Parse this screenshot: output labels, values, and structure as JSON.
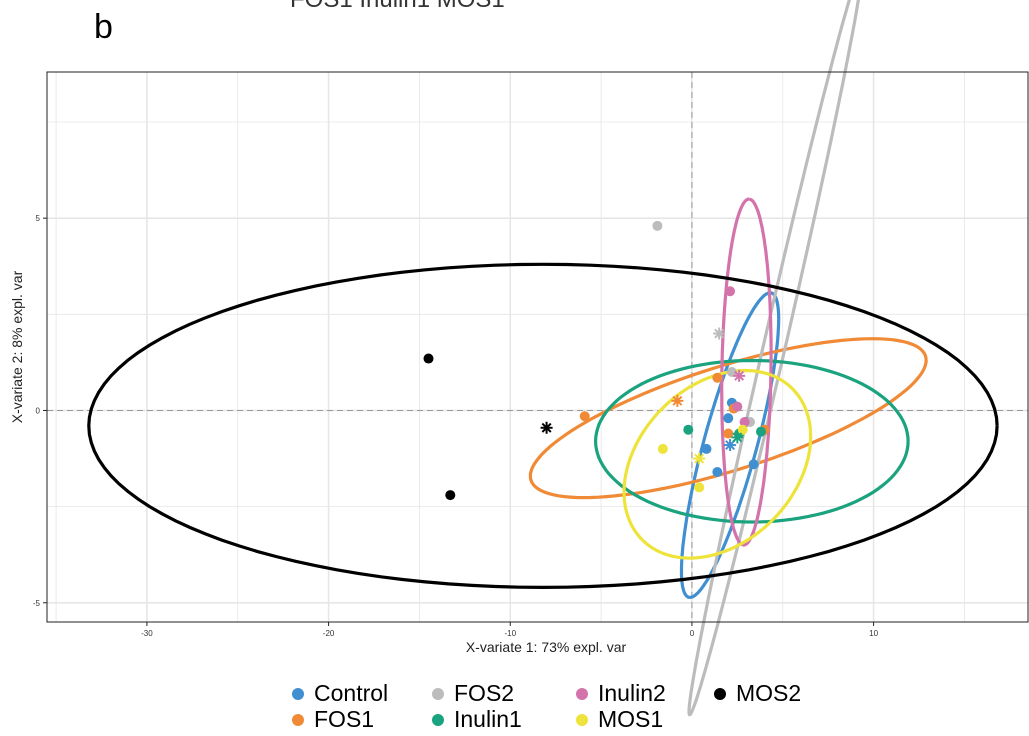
{
  "panel_label": "b",
  "top_cut_text": "FOS1 Inulin1 MOS1",
  "chart_data": {
    "type": "scatter",
    "title": "",
    "xlabel": "X-variate 1: 73% expl. var",
    "ylabel": "X-variate 2: 8% expl. var",
    "xlim": [
      -35.5,
      18.5
    ],
    "ylim": [
      -5.5,
      8.8
    ],
    "xticks": [
      -30,
      -20,
      -10,
      0,
      10
    ],
    "yticks": [
      -5,
      0,
      5
    ],
    "xtick_labels": [
      "-30",
      "-20",
      "-10",
      "0",
      "10"
    ],
    "ytick_labels": [
      "-5",
      "0",
      "5"
    ],
    "grid": true,
    "reference_lines": {
      "x": 0,
      "y": 0
    },
    "legend_position": "bottom",
    "series": [
      {
        "name": "Control",
        "color": "#3f8fd1",
        "points": [
          [
            0.8,
            -1.0
          ],
          [
            1.4,
            -1.6
          ],
          [
            3.4,
            -1.4
          ],
          [
            2.0,
            -0.2
          ],
          [
            3.0,
            -0.3
          ],
          [
            2.2,
            0.2
          ]
        ],
        "centroid": [
          2.1,
          -0.9
        ],
        "ellipse": {
          "cx": 2.1,
          "cy": -0.9,
          "rx": 4.6,
          "ry": 1.3,
          "angle": 58
        }
      },
      {
        "name": "FOS1",
        "color": "#f08a36",
        "points": [
          [
            -5.9,
            -0.15
          ],
          [
            1.4,
            0.85
          ],
          [
            2.3,
            0.05
          ],
          [
            4.0,
            -0.5
          ],
          [
            2.0,
            -0.6
          ]
        ],
        "centroid": [
          -0.8,
          0.25
        ],
        "ellipse": {
          "cx": 2.0,
          "cy": -0.2,
          "rx": 11.0,
          "ry": 1.4,
          "angle": 8
        }
      },
      {
        "name": "FOS2",
        "color": "#bcbcbc",
        "points": [
          [
            -1.9,
            4.8
          ],
          [
            2.2,
            1.0
          ],
          [
            3.2,
            -0.3
          ]
        ],
        "centroid": [
          1.5,
          2.0
        ],
        "ellipse": {
          "cx": 4.6,
          "cy": 1.8,
          "rx": 10.8,
          "ry": 0.55,
          "angle": 64
        }
      },
      {
        "name": "Inulin1",
        "color": "#1aa37e",
        "points": [
          [
            -0.2,
            -0.5
          ],
          [
            2.6,
            -0.6
          ],
          [
            3.8,
            -0.55
          ]
        ],
        "centroid": [
          2.5,
          -0.7
        ],
        "ellipse": {
          "cx": 3.3,
          "cy": -0.8,
          "rx": 8.6,
          "ry": 2.1,
          "angle": 0
        }
      },
      {
        "name": "Inulin2",
        "color": "#d473ab",
        "points": [
          [
            2.1,
            3.1
          ],
          [
            2.5,
            0.1
          ],
          [
            2.9,
            -0.3
          ]
        ],
        "centroid": [
          2.6,
          0.9
        ],
        "ellipse": {
          "cx": 3.0,
          "cy": 1.0,
          "rx": 4.5,
          "ry": 1.35,
          "angle": 88
        }
      },
      {
        "name": "MOS1",
        "color": "#ede33b",
        "points": [
          [
            -1.6,
            -1.0
          ],
          [
            0.4,
            -2.0
          ],
          [
            2.8,
            -0.5
          ]
        ],
        "centroid": [
          0.4,
          -1.25
        ],
        "ellipse": {
          "cx": 1.4,
          "cy": -1.4,
          "rx": 5.2,
          "ry": 2.3,
          "angle": 10
        }
      },
      {
        "name": "MOS2",
        "color": "#000000",
        "points": [
          [
            -14.5,
            1.35
          ],
          [
            -13.3,
            -2.2
          ]
        ],
        "centroid": [
          -8.0,
          -0.45
        ],
        "ellipse": {
          "cx": -8.2,
          "cy": -0.4,
          "rx": 25.0,
          "ry": 4.2,
          "angle": 0
        }
      }
    ]
  }
}
